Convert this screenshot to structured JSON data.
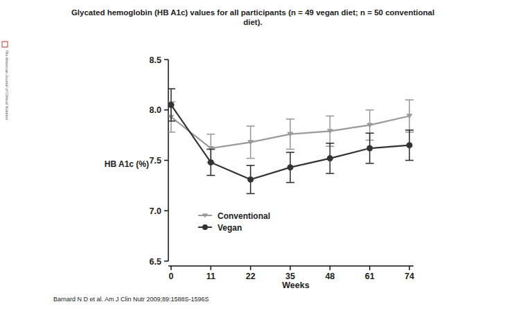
{
  "chart_data": {
    "type": "line",
    "title": "Glycated hemoglobin (HB A1c) values for all participants (n = 49 vegan diet; n = 50 conventional diet).",
    "x_label": "Weeks",
    "y_label": "HB A1c (%)",
    "annotations": [
      "Barnard N D et al. Am J Clin Nutr 2009;89:1588S-1596S",
      "The American Journal of Clinical Nutrition"
    ],
    "categories": [
      "0",
      "11",
      "22",
      "35",
      "48",
      "61",
      "74"
    ],
    "ylim": [
      6.5,
      8.5
    ],
    "yticks": [
      6.5,
      {
        "value": 7,
        "label": "7.0"
      },
      7.5,
      {
        "value": 8,
        "label": "8.0"
      },
      8.5
    ],
    "grid": false,
    "legend": "lower left",
    "series": [
      {
        "name": "Conventional",
        "color": "#9a9a9a",
        "marker": "triangle-down",
        "line_style": "solid",
        "values": [
          7.93,
          7.62,
          7.68,
          7.76,
          7.79,
          7.85,
          7.94
        ],
        "errors": [
          0.15,
          0.14,
          0.16,
          0.15,
          0.15,
          0.15,
          0.16
        ]
      },
      {
        "name": "Vegan",
        "color": "#333333",
        "marker": "circle",
        "line_style": "solid",
        "values": [
          8.05,
          7.48,
          7.31,
          7.43,
          7.52,
          7.62,
          7.65
        ],
        "errors": [
          0.16,
          0.13,
          0.14,
          0.15,
          0.15,
          0.15,
          0.15
        ]
      }
    ]
  }
}
